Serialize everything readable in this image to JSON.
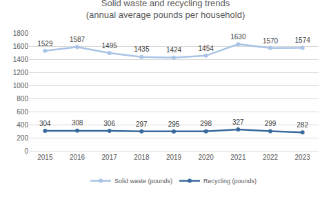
{
  "chart_data": {
    "type": "line",
    "title": "Solid waste and recycling trends",
    "subtitle": "(annual average pounds per household)",
    "categories": [
      "2015",
      "2016",
      "2017",
      "2018",
      "2019",
      "2020",
      "2021",
      "2022",
      "2023"
    ],
    "series": [
      {
        "name": "Solid waste (pounds)",
        "color": "#a9c4e6",
        "marker": "circle",
        "line_style": "solid",
        "values": [
          1529,
          1587,
          1495,
          1435,
          1424,
          1454,
          1630,
          1570,
          1574
        ]
      },
      {
        "name": "Recycling (pounds)",
        "color": "#3a6a9c",
        "marker": "circle",
        "line_style": "solid",
        "values": [
          304,
          308,
          306,
          297,
          295,
          298,
          327,
          299,
          282
        ]
      }
    ],
    "ylim": [
      0,
      1800
    ],
    "yticks": [
      0,
      200,
      400,
      600,
      800,
      1000,
      1200,
      1400,
      1600,
      1800
    ],
    "grid": true,
    "legend": "bottom",
    "data_labels": true
  }
}
